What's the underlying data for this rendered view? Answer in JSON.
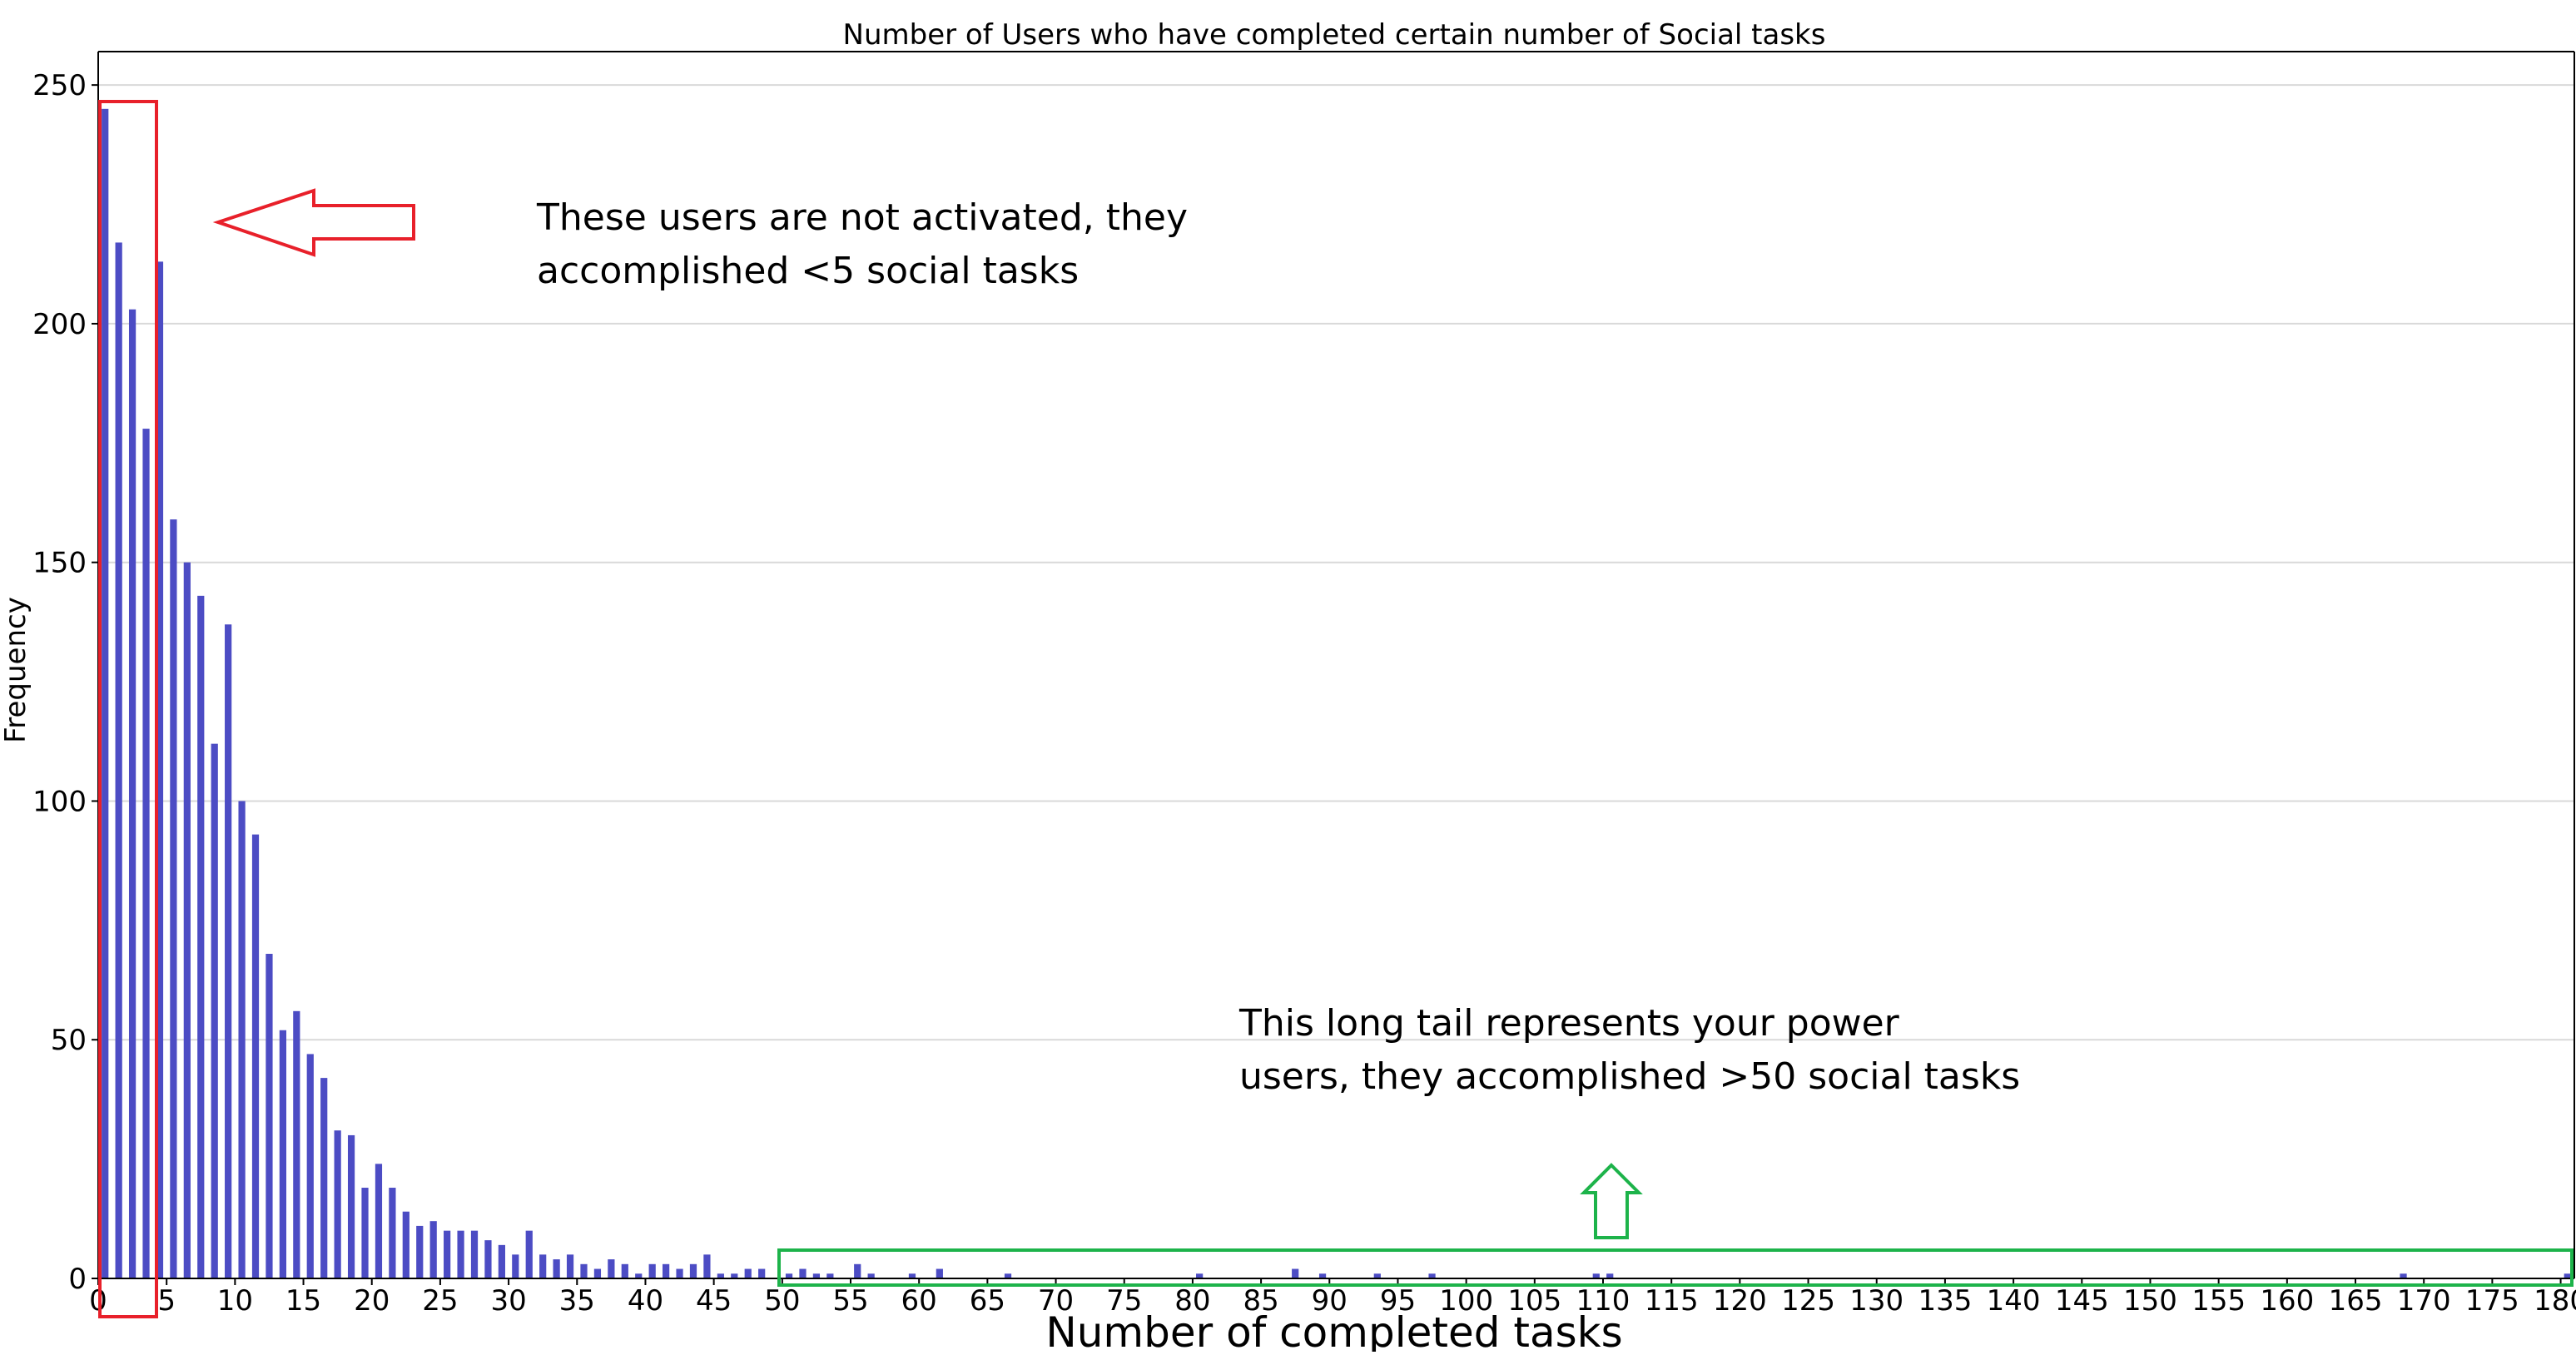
{
  "chart_data": {
    "type": "bar",
    "title": "Number of Users who have completed certain number of Social tasks",
    "xlabel": "Number of completed tasks",
    "ylabel": "Frequency",
    "xlim": [
      0,
      181
    ],
    "ylim": [
      0,
      257
    ],
    "y_ticks": [
      0,
      50,
      100,
      150,
      200,
      250
    ],
    "x_ticks": [
      0,
      5,
      10,
      15,
      20,
      25,
      30,
      35,
      40,
      45,
      50,
      55,
      60,
      65,
      70,
      75,
      80,
      85,
      90,
      95,
      100,
      105,
      110,
      115,
      120,
      125,
      130,
      135,
      140,
      145,
      150,
      155,
      160,
      165,
      170,
      175,
      180
    ],
    "grid": "horizontal",
    "bar_color": "#4c4cc4",
    "x": [
      0,
      1,
      2,
      3,
      4,
      5,
      6,
      7,
      8,
      9,
      10,
      11,
      12,
      13,
      14,
      15,
      16,
      17,
      18,
      19,
      20,
      21,
      22,
      23,
      24,
      25,
      26,
      27,
      28,
      29,
      30,
      31,
      32,
      33,
      34,
      35,
      36,
      37,
      38,
      39,
      40,
      41,
      42,
      43,
      44,
      45,
      46,
      47,
      48,
      49,
      50,
      51,
      52,
      53,
      54,
      55,
      56,
      57,
      58,
      59,
      60,
      61,
      62,
      63,
      64,
      65,
      66,
      67,
      68,
      69,
      70,
      71,
      72,
      73,
      74,
      75,
      76,
      77,
      78,
      79,
      80,
      81,
      82,
      83,
      84,
      85,
      86,
      87,
      88,
      89,
      90,
      91,
      92,
      93,
      94,
      95,
      96,
      97,
      98,
      99,
      100,
      101,
      102,
      103,
      104,
      105,
      106,
      107,
      108,
      109,
      110,
      111,
      112,
      113,
      114,
      115,
      116,
      117,
      118,
      119,
      120,
      121,
      122,
      123,
      124,
      125,
      126,
      127,
      128,
      129,
      130,
      131,
      132,
      133,
      134,
      135,
      136,
      137,
      138,
      139,
      140,
      141,
      142,
      143,
      144,
      145,
      146,
      147,
      148,
      149,
      150,
      151,
      152,
      153,
      154,
      155,
      156,
      157,
      158,
      159,
      160,
      161,
      162,
      163,
      164,
      165,
      166,
      167,
      168,
      169,
      170,
      171,
      172,
      173,
      174,
      175,
      176,
      177,
      178,
      179,
      180
    ],
    "values": [
      245,
      217,
      203,
      178,
      213,
      159,
      150,
      143,
      112,
      137,
      100,
      93,
      68,
      52,
      56,
      47,
      42,
      31,
      30,
      19,
      24,
      19,
      14,
      11,
      12,
      10,
      10,
      10,
      8,
      7,
      5,
      10,
      5,
      4,
      5,
      3,
      2,
      4,
      3,
      1,
      3,
      3,
      2,
      3,
      5,
      1,
      1,
      2,
      2,
      0,
      1,
      2,
      1,
      1,
      0,
      3,
      1,
      0,
      0,
      1,
      0,
      2,
      0,
      0,
      0,
      0,
      1,
      0,
      0,
      0,
      0,
      0,
      0,
      0,
      0,
      0,
      0,
      0,
      0,
      0,
      1,
      0,
      0,
      0,
      0,
      0,
      0,
      2,
      0,
      1,
      0,
      0,
      0,
      1,
      0,
      0,
      0,
      1,
      0,
      0,
      0,
      0,
      0,
      0,
      0,
      0,
      0,
      0,
      0,
      1,
      1,
      0,
      0,
      0,
      0,
      0,
      0,
      0,
      0,
      0,
      0,
      0,
      0,
      0,
      0,
      0,
      0,
      0,
      0,
      0,
      0,
      0,
      0,
      0,
      0,
      0,
      0,
      0,
      0,
      0,
      0,
      0,
      0,
      0,
      0,
      0,
      0,
      0,
      0,
      0,
      0,
      0,
      0,
      0,
      0,
      0,
      0,
      0,
      0,
      0,
      0,
      0,
      0,
      0,
      0,
      0,
      0,
      0,
      1,
      0,
      0,
      0,
      0,
      0,
      0,
      0,
      0,
      0,
      0,
      0,
      1
    ]
  },
  "annotations": {
    "low_text": "These users are not activated, they\naccomplished <5 social tasks",
    "tail_text": "This long tail represents your power\nusers, they accomplished >50 social tasks",
    "low_color": "#e8202a",
    "tail_color": "#1db34a"
  }
}
